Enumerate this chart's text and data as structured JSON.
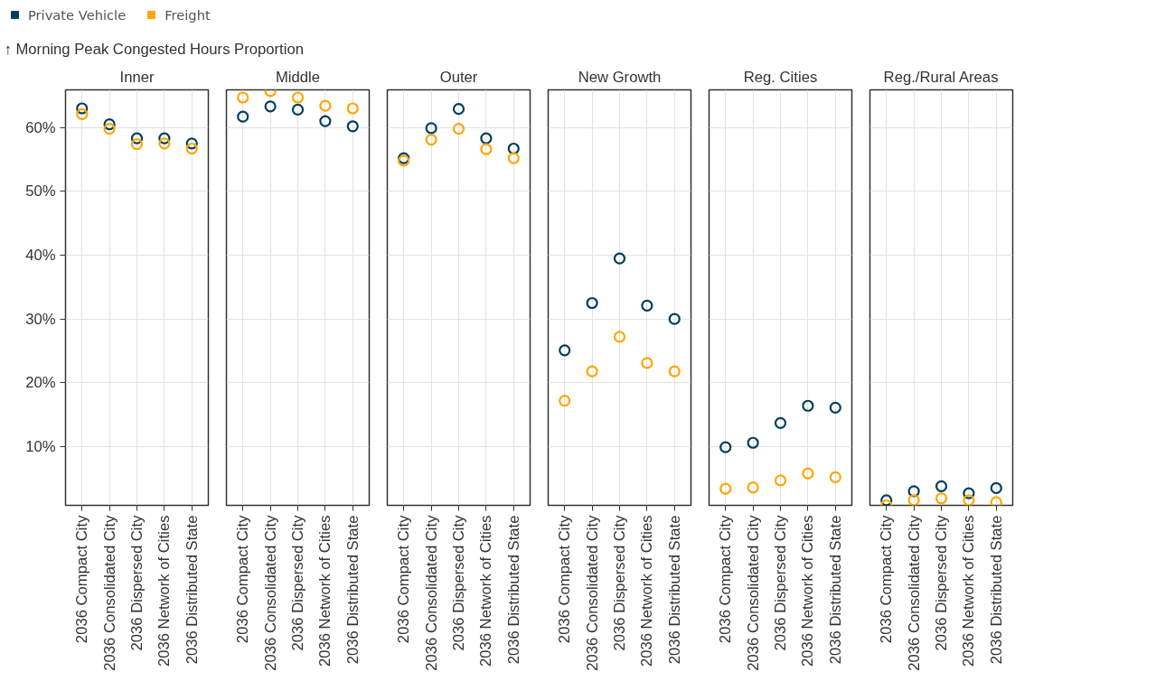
{
  "chart_data": [
    {
      "type": "scatter",
      "title": "Inner",
      "ylabel": "↑ Morning Peak Congested Hours Proportion",
      "categories": [
        "2036 Compact City",
        "2036 Consolidated City",
        "2036 Dispersed City",
        "2036 Network of Cities",
        "2036 Distributed State"
      ],
      "ylim": [
        0.8,
        65.9
      ],
      "yticks": [
        {
          "value": 10,
          "label": "10%"
        },
        {
          "value": 20,
          "label": "20%"
        },
        {
          "value": 30,
          "label": "30%"
        },
        {
          "value": 40,
          "label": "40%"
        },
        {
          "value": 50,
          "label": "50%"
        },
        {
          "value": 60,
          "label": "60%"
        }
      ],
      "grid": true,
      "marker": "circle",
      "legend": "top left",
      "series": [
        {
          "name": "Private Vehicle",
          "color": "#003f5c",
          "values": [
            63.0,
            60.5,
            58.3,
            58.3,
            57.5
          ]
        },
        {
          "name": "Freight",
          "color": "#ffa600",
          "values": [
            62.1,
            59.8,
            57.4,
            57.5,
            56.7
          ]
        }
      ]
    },
    {
      "type": "scatter",
      "title": "Middle",
      "categories": [
        "2036 Compact City",
        "2036 Consolidated City",
        "2036 Dispersed City",
        "2036 Network of Cities",
        "2036 Distributed State"
      ],
      "ylim": [
        0.8,
        65.9
      ],
      "yticks": [
        10,
        20,
        30,
        40,
        50,
        60
      ],
      "grid": true,
      "marker": "circle",
      "tick_labels": "x",
      "series": [
        {
          "color": "#003f5c",
          "values": [
            61.7,
            63.3,
            62.8,
            61.0,
            60.2
          ]
        },
        {
          "color": "#ffa600",
          "values": [
            64.7,
            65.7,
            64.7,
            63.4,
            63.0
          ]
        }
      ]
    },
    {
      "type": "scatter",
      "title": "Outer",
      "categories": [
        "2036 Compact City",
        "2036 Consolidated City",
        "2036 Dispersed City",
        "2036 Network of Cities",
        "2036 Distributed State"
      ],
      "ylim": [
        0.8,
        65.9
      ],
      "yticks": [
        10,
        20,
        30,
        40,
        50,
        60
      ],
      "grid": true,
      "marker": "circle",
      "tick_labels": "x",
      "series": [
        {
          "color": "#003f5c",
          "values": [
            55.2,
            59.9,
            62.9,
            58.3,
            56.7
          ]
        },
        {
          "color": "#ffa600",
          "values": [
            54.8,
            58.1,
            59.8,
            56.6,
            55.2
          ]
        }
      ]
    },
    {
      "type": "scatter",
      "title": "New Growth",
      "categories": [
        "2036 Compact City",
        "2036 Consolidated City",
        "2036 Dispersed City",
        "2036 Network of Cities",
        "2036 Distributed State"
      ],
      "ylim": [
        0.8,
        65.9
      ],
      "yticks": [
        10,
        20,
        30,
        40,
        50,
        60
      ],
      "grid": true,
      "marker": "circle",
      "tick_labels": "x",
      "series": [
        {
          "color": "#003f5c",
          "values": [
            25.1,
            32.5,
            39.5,
            32.1,
            30.0
          ]
        },
        {
          "color": "#ffa600",
          "values": [
            17.2,
            21.8,
            27.2,
            23.1,
            21.8
          ]
        }
      ]
    },
    {
      "type": "scatter",
      "title": "Reg. Cities",
      "categories": [
        "2036 Compact City",
        "2036 Consolidated City",
        "2036 Dispersed City",
        "2036 Network of Cities",
        "2036 Distributed State"
      ],
      "ylim": [
        0.8,
        65.9
      ],
      "yticks": [
        10,
        20,
        30,
        40,
        50,
        60
      ],
      "grid": true,
      "marker": "circle",
      "tick_labels": "x",
      "series": [
        {
          "color": "#003f5c",
          "values": [
            9.9,
            10.6,
            13.7,
            16.4,
            16.1
          ]
        },
        {
          "color": "#ffa600",
          "values": [
            3.4,
            3.6,
            4.7,
            5.8,
            5.2
          ]
        }
      ]
    },
    {
      "type": "scatter",
      "title": "Reg./Rural Areas",
      "categories": [
        "2036 Compact City",
        "2036 Consolidated City",
        "2036 Dispersed City",
        "2036 Network of Cities",
        "2036 Distributed State"
      ],
      "ylim": [
        0.8,
        65.9
      ],
      "yticks": [
        10,
        20,
        30,
        40,
        50,
        60
      ],
      "grid": true,
      "marker": "circle",
      "tick_labels": "x",
      "series": [
        {
          "color": "#003f5c",
          "values": [
            1.6,
            3.0,
            3.8,
            2.7,
            3.5
          ]
        },
        {
          "color": "#ffa600",
          "values": [
            0.8,
            1.6,
            1.9,
            1.6,
            1.3
          ]
        }
      ]
    }
  ]
}
